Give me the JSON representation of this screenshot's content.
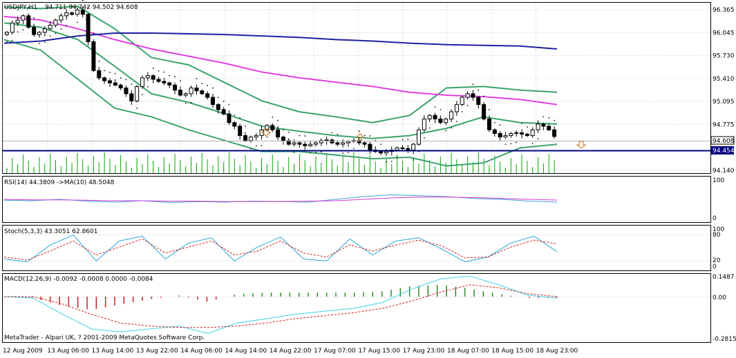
{
  "main": {
    "header": {
      "symbol_tf": "USDJPY,H1",
      "ohlc": "94.711 94.742 94.502 94.608"
    },
    "price_labels": [
      "96.365",
      "96.045",
      "95.730",
      "95.410",
      "95.095",
      "94.775",
      "94.140"
    ],
    "badges": {
      "bid": "94.608",
      "line": "94.454"
    }
  },
  "rsi": {
    "header": "RSI(14) 44.3809   ->MA(10) 48.5048",
    "scale_top": "100",
    "scale_bottom": "0"
  },
  "stoch": {
    "header": "Stoch(5,3,3) 43.3051 62.8601",
    "scale_100": "100",
    "scale_80": "80",
    "scale_20": "20",
    "scale_0": "0"
  },
  "macd": {
    "header": "MACD(12,26,9) -0.0092 -0.0008 0.0000 -0.0084",
    "scale_top": "0.1487",
    "scale_zero": "0.00",
    "scale_bottom": "-0.2815"
  },
  "footer": "MetaTrader - Alpari UK, ? 2001-2009 MetaQuotes Software Corp.",
  "time_labels": [
    "12 Aug 2009",
    "13 Aug 06:00",
    "13 Aug 14:00",
    "13 Aug 22:00",
    "14 Aug 06:00",
    "14 Aug 14:00",
    "14 Aug 22:00",
    "17 Aug 07:00",
    "17 Aug 15:00",
    "17 Aug 23:00",
    "18 Aug 07:00",
    "18 Aug 15:00",
    "18 Aug 23:00"
  ],
  "chart_data": {
    "type": "line",
    "title": "USDJPY,H1",
    "ylim": [
      94.1,
      96.46
    ],
    "candles_close": [
      96.05,
      96.18,
      96.22,
      96.28,
      96.12,
      96.02,
      96.05,
      96.1,
      96.15,
      96.22,
      96.28,
      96.32,
      96.3,
      96.36,
      96.3,
      95.92,
      95.52,
      95.42,
      95.38,
      95.35,
      95.32,
      95.28,
      95.2,
      95.1,
      95.3,
      95.42,
      95.45,
      95.4,
      95.37,
      95.35,
      95.32,
      95.25,
      95.18,
      95.2,
      95.28,
      95.24,
      95.2,
      95.15,
      95.05,
      94.98,
      94.92,
      94.8,
      94.75,
      94.62,
      94.55,
      94.6,
      94.62,
      94.7,
      94.76,
      94.7,
      94.6,
      94.55,
      94.5,
      94.52,
      94.5,
      94.48,
      94.5,
      94.52,
      94.55,
      94.56,
      94.52,
      94.5,
      94.52,
      94.54,
      94.55,
      94.52,
      94.5,
      94.42,
      94.4,
      94.38,
      94.4,
      94.42,
      94.45,
      94.44,
      94.42,
      94.5,
      94.7,
      94.85,
      94.9,
      94.85,
      94.8,
      94.85,
      94.95,
      95.05,
      95.15,
      95.2,
      95.15,
      95.05,
      94.85,
      94.7,
      94.65,
      94.6,
      94.62,
      94.65,
      94.66,
      94.64,
      94.62,
      94.7,
      94.78,
      94.75,
      94.7,
      94.608
    ],
    "series": [
      {
        "name": "MA magenta",
        "values": [
          96.27,
          96.22,
          96.1,
          95.95,
          95.82,
          95.72,
          95.62,
          95.5,
          95.42,
          95.36,
          95.3,
          95.22,
          95.18,
          95.16,
          95.12,
          95.05
        ]
      },
      {
        "name": "MA navy",
        "values": [
          95.9,
          95.93,
          96.0,
          96.04,
          96.04,
          96.03,
          96.02,
          96.0,
          95.98,
          95.95,
          95.93,
          95.9,
          95.88,
          95.87,
          95.86,
          95.82
        ]
      },
      {
        "name": "BB upper",
        "values": [
          96.4,
          96.38,
          96.41,
          96.1,
          95.7,
          95.6,
          95.35,
          95.1,
          94.95,
          94.88,
          94.8,
          94.9,
          95.28,
          95.3,
          95.25,
          95.22
        ]
      },
      {
        "name": "BB middle",
        "values": [
          96.18,
          96.12,
          95.95,
          95.58,
          95.2,
          95.08,
          94.92,
          94.75,
          94.68,
          94.62,
          94.58,
          94.62,
          94.72,
          94.88,
          94.8,
          94.78
        ]
      },
      {
        "name": "BB lower",
        "values": [
          95.95,
          95.8,
          95.4,
          95.0,
          94.88,
          94.7,
          94.55,
          94.4,
          94.4,
          94.35,
          94.3,
          94.32,
          94.2,
          94.24,
          94.45,
          94.5
        ]
      },
      {
        "name": "RSI",
        "values": [
          48,
          47,
          50,
          46,
          44,
          47,
          43,
          45,
          44,
          46,
          45,
          44,
          50,
          56,
          60,
          58,
          56,
          52,
          50,
          46,
          44
        ]
      },
      {
        "name": "RSI MA",
        "values": [
          50,
          49,
          49,
          48,
          47,
          47,
          46,
          46,
          45,
          45,
          45,
          46,
          47,
          50,
          53,
          55,
          55,
          54,
          52,
          50,
          48.5
        ]
      },
      {
        "name": "Stoch main",
        "values": [
          25,
          18,
          60,
          85,
          20,
          70,
          82,
          25,
          65,
          78,
          20,
          55,
          80,
          25,
          20,
          75,
          35,
          70,
          78,
          50,
          18,
          30,
          65,
          82,
          43
        ]
      },
      {
        "name": "Stoch signal",
        "values": [
          30,
          22,
          45,
          70,
          35,
          55,
          75,
          40,
          55,
          70,
          35,
          45,
          70,
          40,
          30,
          60,
          45,
          60,
          72,
          58,
          28,
          30,
          55,
          72,
          63
        ]
      },
      {
        "name": "MACD main",
        "values": [
          0.0,
          -0.01,
          -0.12,
          -0.22,
          -0.24,
          -0.22,
          -0.2,
          -0.25,
          -0.18,
          -0.15,
          -0.12,
          -0.1,
          -0.08,
          -0.04,
          0.05,
          0.12,
          0.14,
          0.08,
          0.01,
          -0.01
        ]
      },
      {
        "name": "MACD signal",
        "values": [
          0.0,
          0.0,
          -0.05,
          -0.12,
          -0.18,
          -0.2,
          -0.21,
          -0.21,
          -0.2,
          -0.18,
          -0.15,
          -0.13,
          -0.11,
          -0.08,
          -0.03,
          0.03,
          0.08,
          0.06,
          0.02,
          -0.0
        ]
      }
    ]
  }
}
